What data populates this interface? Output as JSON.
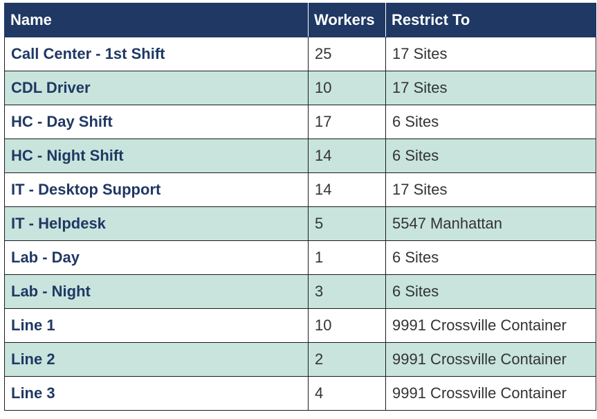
{
  "table": {
    "headers": {
      "name": "Name",
      "workers": "Workers",
      "restrict_to": "Restrict To"
    },
    "rows": [
      {
        "name": "Call Center - 1st Shift",
        "workers": "25",
        "restrict_to": "17 Sites"
      },
      {
        "name": "CDL Driver",
        "workers": "10",
        "restrict_to": "17 Sites"
      },
      {
        "name": "HC - Day Shift",
        "workers": "17",
        "restrict_to": "6 Sites"
      },
      {
        "name": "HC - Night Shift",
        "workers": "14",
        "restrict_to": "6 Sites"
      },
      {
        "name": "IT - Desktop Support",
        "workers": "14",
        "restrict_to": "17 Sites"
      },
      {
        "name": "IT - Helpdesk",
        "workers": "5",
        "restrict_to": "5547 Manhattan"
      },
      {
        "name": "Lab - Day",
        "workers": "1",
        "restrict_to": "6 Sites"
      },
      {
        "name": "Lab - Night",
        "workers": "3",
        "restrict_to": "6 Sites"
      },
      {
        "name": "Line 1",
        "workers": "10",
        "restrict_to": "9991 Crossville Container"
      },
      {
        "name": "Line 2",
        "workers": "2",
        "restrict_to": "9991 Crossville Container"
      },
      {
        "name": "Line 3",
        "workers": "4",
        "restrict_to": "9991 Crossville Container"
      }
    ]
  },
  "colors": {
    "header_bg": "#1f3864",
    "header_text": "#ffffff",
    "stripe_bg": "#c8e4dc",
    "name_text": "#1f3864"
  }
}
